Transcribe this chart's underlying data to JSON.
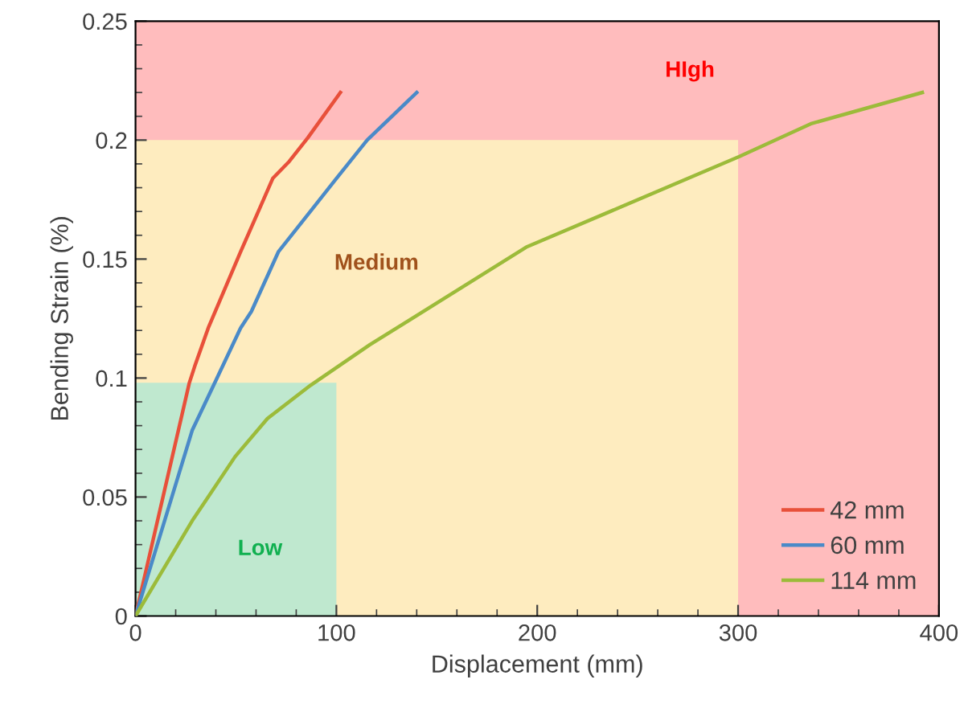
{
  "chart_data": {
    "type": "line",
    "xlabel": "Displacement (mm)",
    "ylabel": "Bending Strain (%)",
    "xlim": [
      0,
      400
    ],
    "ylim": [
      0,
      0.25
    ],
    "xticks": [
      0,
      100,
      200,
      300,
      400
    ],
    "yticks": [
      0,
      0.05,
      0.1,
      0.15,
      0.2,
      0.25
    ],
    "grid": false,
    "legend": "bottom right",
    "marker": "none",
    "line_style": "solid",
    "series": [
      {
        "type": "area",
        "color": "#ffbcbd",
        "x": [
          0,
          400
        ],
        "values": [
          0.25,
          0.25
        ]
      },
      {
        "type": "area",
        "color": "#feecbf",
        "x": [
          0,
          300
        ],
        "values": [
          0.2,
          0.2
        ]
      },
      {
        "type": "area",
        "color": "#bfe8cf",
        "x": [
          0,
          100
        ],
        "values": [
          0.098,
          0.098
        ]
      },
      {
        "name": "42 mm",
        "color": "#e8503a",
        "x": [
          0,
          26.8,
          29.5,
          36.2,
          52.3,
          68.4,
          76.5,
          85.8,
          102
        ],
        "values": [
          0,
          0.098,
          0.105,
          0.121,
          0.153,
          0.184,
          0.191,
          0.201,
          0.22
        ]
      },
      {
        "name": "60 mm",
        "color": "#4a8ac8",
        "x": [
          0,
          28.2,
          38.9,
          52.3,
          57.7,
          71.1,
          99.2,
          115.3,
          140
        ],
        "values": [
          0,
          0.078,
          0.097,
          0.121,
          0.128,
          0.153,
          0.183,
          0.2,
          0.22
        ]
      },
      {
        "name": "114 mm",
        "color": "#9cbb3a",
        "x": [
          0,
          28.2,
          49.6,
          65.7,
          87.2,
          116.7,
          149,
          194.5,
          300.4,
          336.7,
          391.7
        ],
        "values": [
          0,
          0.04,
          0.067,
          0.083,
          0.097,
          0.114,
          0.131,
          0.155,
          0.193,
          0.207,
          0.22
        ]
      }
    ],
    "annotations": [
      "HIgh",
      "Medium",
      "Low"
    ]
  }
}
